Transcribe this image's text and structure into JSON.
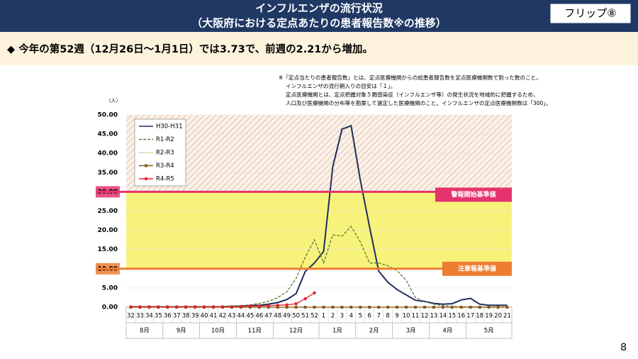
{
  "header": {
    "title": [
      "インフルエンザの流行状況",
      "（大阪府における定点あたりの患者報告数※の推移）"
    ],
    "flip": "フリップ⑧"
  },
  "headline": "◆ 今年の第52週（12月26日〜1月1日）では3.73で、前週の2.21から増加。",
  "notes": [
    "※「定点当たりの患者報告数」とは、定点医療機関からの総患者報告数を定点医療機関数で割った数のこと。",
    "インフルエンザの流行期入りの目安は「１」。",
    "定点医療機関とは、定点把握対象５類感染症（インフルエンザ等）の発生状況を地域的に把握するため、",
    "人口及び医療機関の分布等を勘案して選定した医療機関のこと。インフルエンザの定点医療機関数は「300」。"
  ],
  "page_number": "8",
  "chart_data": {
    "type": "line",
    "y_label": "（人）",
    "categories": [
      "32",
      "33",
      "34",
      "35",
      "36",
      "37",
      "38",
      "39",
      "40",
      "41",
      "42",
      "43",
      "44",
      "45",
      "46",
      "47",
      "48",
      "49",
      "50",
      "51",
      "52",
      "1",
      "2",
      "3",
      "4",
      "5",
      "6",
      "7",
      "8",
      "9",
      "10",
      "11",
      "12",
      "13",
      "14",
      "15",
      "16",
      "17",
      "18",
      "19",
      "20",
      "21"
    ],
    "months": [
      "8月",
      "9月",
      "10月",
      "11月",
      "12月",
      "1月",
      "2月",
      "3月",
      "4月",
      "5月"
    ],
    "ylim": [
      0,
      50
    ],
    "yticks": [
      {
        "value": 0,
        "label": "0.00"
      },
      {
        "value": 5,
        "label": "5.00"
      },
      {
        "value": 10,
        "label": "10.00"
      },
      {
        "value": 15,
        "label": "15.00"
      },
      {
        "value": 20,
        "label": "20.00"
      },
      {
        "value": 25,
        "label": "25.00"
      },
      {
        "value": 30,
        "label": "30.00"
      },
      {
        "value": 35,
        "label": "35.00"
      },
      {
        "value": 40,
        "label": "40.00"
      },
      {
        "value": 45,
        "label": "45.00"
      },
      {
        "value": 50,
        "label": "50.00"
      }
    ],
    "reference_lines": [
      {
        "value": 30,
        "label": "警報開始基準値",
        "color": "#e6336e"
      },
      {
        "value": 10,
        "label": "注意報基準値",
        "color": "#ed7d31"
      }
    ],
    "series": [
      {
        "name": "H30-H31",
        "color": "#1f2d5c",
        "style": "solid",
        "marker": "none",
        "values": [
          0.1,
          0.1,
          0.1,
          0.1,
          0.1,
          0.1,
          0.1,
          0.1,
          0.1,
          0.1,
          0.1,
          0.2,
          0.3,
          0.4,
          0.5,
          0.8,
          1.2,
          2.0,
          3.5,
          9.3,
          11.5,
          14.5,
          36.5,
          46.3,
          47.2,
          33.0,
          21.0,
          9.4,
          6.5,
          4.6,
          3.2,
          1.8,
          1.5,
          1.0,
          0.8,
          0.9,
          1.9,
          2.3,
          0.8,
          0.5,
          0.5,
          0.5
        ]
      },
      {
        "name": "R1-R2",
        "color": "#5b7a3a",
        "style": "dashed",
        "marker": "none",
        "values": [
          0.1,
          0.1,
          0.1,
          0.1,
          0.1,
          0.1,
          0.1,
          0.1,
          0.1,
          0.1,
          0.2,
          0.3,
          0.4,
          0.6,
          1.0,
          1.5,
          2.5,
          4.0,
          7.5,
          13.0,
          17.5,
          11.5,
          18.8,
          18.5,
          21.0,
          17.0,
          11.5,
          11.5,
          10.8,
          9.5,
          7.0,
          2.5,
          1.5,
          0.8,
          0.4,
          0.2,
          0.1,
          0.1,
          0.1,
          0.1,
          0.1,
          0.1
        ]
      },
      {
        "name": "R2-R3",
        "color": "#b8c23a",
        "style": "dotted",
        "marker": "none",
        "values": [
          0.01,
          0.01,
          0.01,
          0.01,
          0.01,
          0.01,
          0.01,
          0.01,
          0.01,
          0.01,
          0.01,
          0.01,
          0.01,
          0.01,
          0.01,
          0.01,
          0.01,
          0.01,
          0.01,
          0.01,
          0.01,
          0.01,
          0.01,
          0.01,
          0.01,
          0.01,
          0.01,
          0.01,
          0.01,
          0.01,
          0.01,
          0.01,
          0.01,
          0.01,
          0.01,
          0.01,
          0.01,
          0.01,
          0.01,
          0.01,
          0.01,
          0.01
        ]
      },
      {
        "name": "R3-R4",
        "color": "#8b5a1b",
        "style": "solid",
        "marker": "square",
        "values": [
          0,
          0,
          0,
          0,
          0,
          0,
          0,
          0,
          0,
          0,
          0,
          0,
          0,
          0,
          0,
          0,
          0,
          0,
          0,
          0,
          0,
          0,
          0,
          0,
          0,
          0,
          0,
          0,
          0,
          0,
          0,
          0,
          0,
          0,
          0,
          0,
          0,
          0,
          0,
          0,
          0,
          0
        ]
      },
      {
        "name": "R4-R5",
        "color": "#e0222a",
        "style": "solid",
        "marker": "circle",
        "values": [
          0.1,
          0.1,
          0.1,
          0.1,
          0.1,
          0.1,
          0.1,
          0.1,
          0.1,
          0.1,
          0.1,
          0.1,
          0.2,
          0.3,
          0.3,
          0.4,
          0.5,
          0.6,
          0.9,
          2.21,
          3.73,
          null,
          null,
          null,
          null,
          null,
          null,
          null,
          null,
          null,
          null,
          null,
          null,
          null,
          null,
          null,
          null,
          null,
          null,
          null,
          null,
          null
        ]
      }
    ]
  }
}
